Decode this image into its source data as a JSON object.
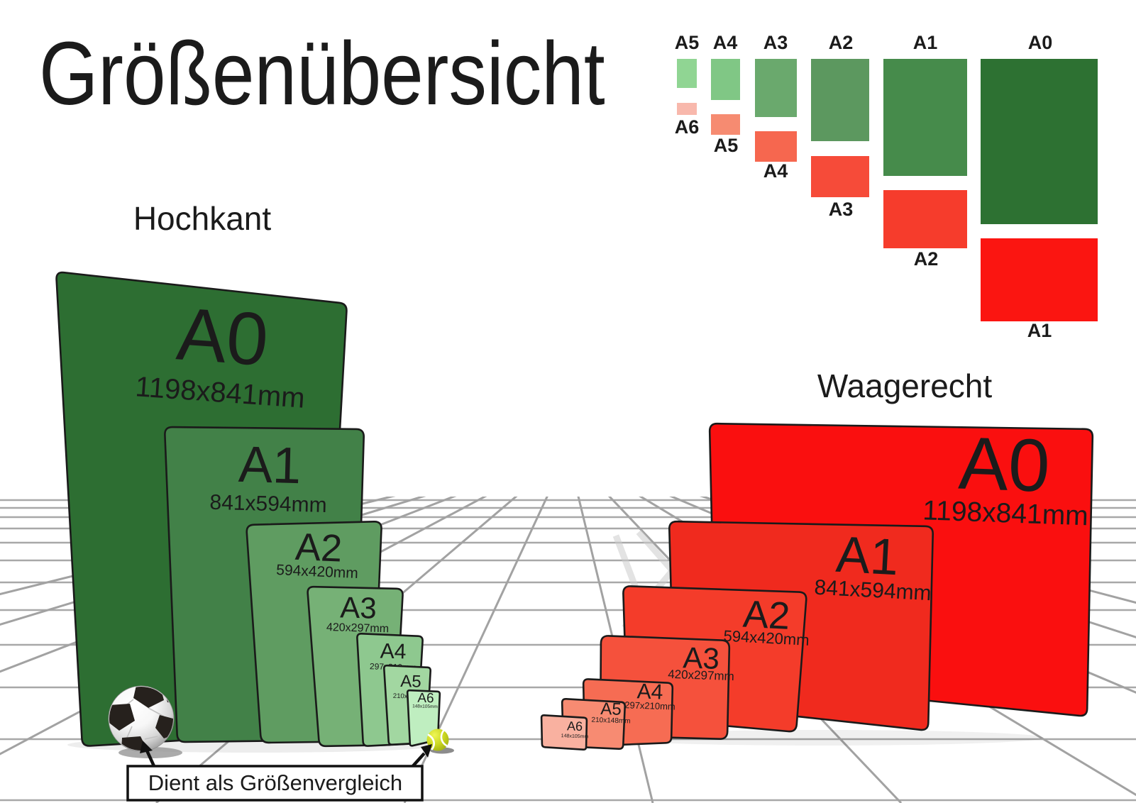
{
  "title": "Größenübersicht",
  "sections": {
    "portrait": "Hochkant",
    "landscape": "Waagerecht"
  },
  "caption": {
    "text": "Dient als Größenvergleich"
  },
  "sheets": {
    "portrait": [
      {
        "name": "A0",
        "dims": "1198x841mm",
        "color": "#2d6e32"
      },
      {
        "name": "A1",
        "dims": "841x594mm",
        "color": "#428148"
      },
      {
        "name": "A2",
        "dims": "594x420mm",
        "color": "#5f9c61"
      },
      {
        "name": "A3",
        "dims": "420x297mm",
        "color": "#76b176"
      },
      {
        "name": "A4",
        "dims": "297x210mm",
        "color": "#8ec88f"
      },
      {
        "name": "A5",
        "dims": "210x148mm",
        "color": "#a2d7a1"
      },
      {
        "name": "A6",
        "dims": "148x105mm",
        "color": "#bfeec0"
      }
    ],
    "landscape": [
      {
        "name": "A0",
        "dims": "1198x841mm",
        "color": "#fa0f0f"
      },
      {
        "name": "A1",
        "dims": "841x594mm",
        "color": "#f02a1e"
      },
      {
        "name": "A2",
        "dims": "594x420mm",
        "color": "#f43c2a"
      },
      {
        "name": "A3",
        "dims": "420x297mm",
        "color": "#f5513c"
      },
      {
        "name": "A4",
        "dims": "297x210mm",
        "color": "#f66c53"
      },
      {
        "name": "A5",
        "dims": "210x148mm",
        "color": "#f78b72"
      },
      {
        "name": "A6",
        "dims": "148x105mm",
        "color": "#f9b1a0"
      }
    ]
  },
  "mini_chart": {
    "pairs": [
      {
        "top_label": "A5",
        "bottom_label": "A6",
        "green": "#90d593",
        "red": "#f8b8ac"
      },
      {
        "top_label": "A4",
        "bottom_label": "A5",
        "green": "#80c785",
        "red": "#f68b71"
      },
      {
        "top_label": "A3",
        "bottom_label": "A4",
        "green": "#6aa96d",
        "red": "#f6674f"
      },
      {
        "top_label": "A2",
        "bottom_label": "A3",
        "green": "#5c985f",
        "red": "#f64b39"
      },
      {
        "top_label": "A1",
        "bottom_label": "A2",
        "green": "#468b4b",
        "red": "#f63c2c"
      },
      {
        "top_label": "A0",
        "bottom_label": "A1",
        "green": "#2d7132",
        "red": "#fb1511"
      }
    ]
  },
  "palette": {
    "background": "#ffffff",
    "grid_line": "#a8a8a8",
    "sheet_outline": "#1a1a1a",
    "text": "#1b1b1b",
    "tennis_ball": "#c8d51f",
    "soccer_pentagon": "#26211d"
  }
}
